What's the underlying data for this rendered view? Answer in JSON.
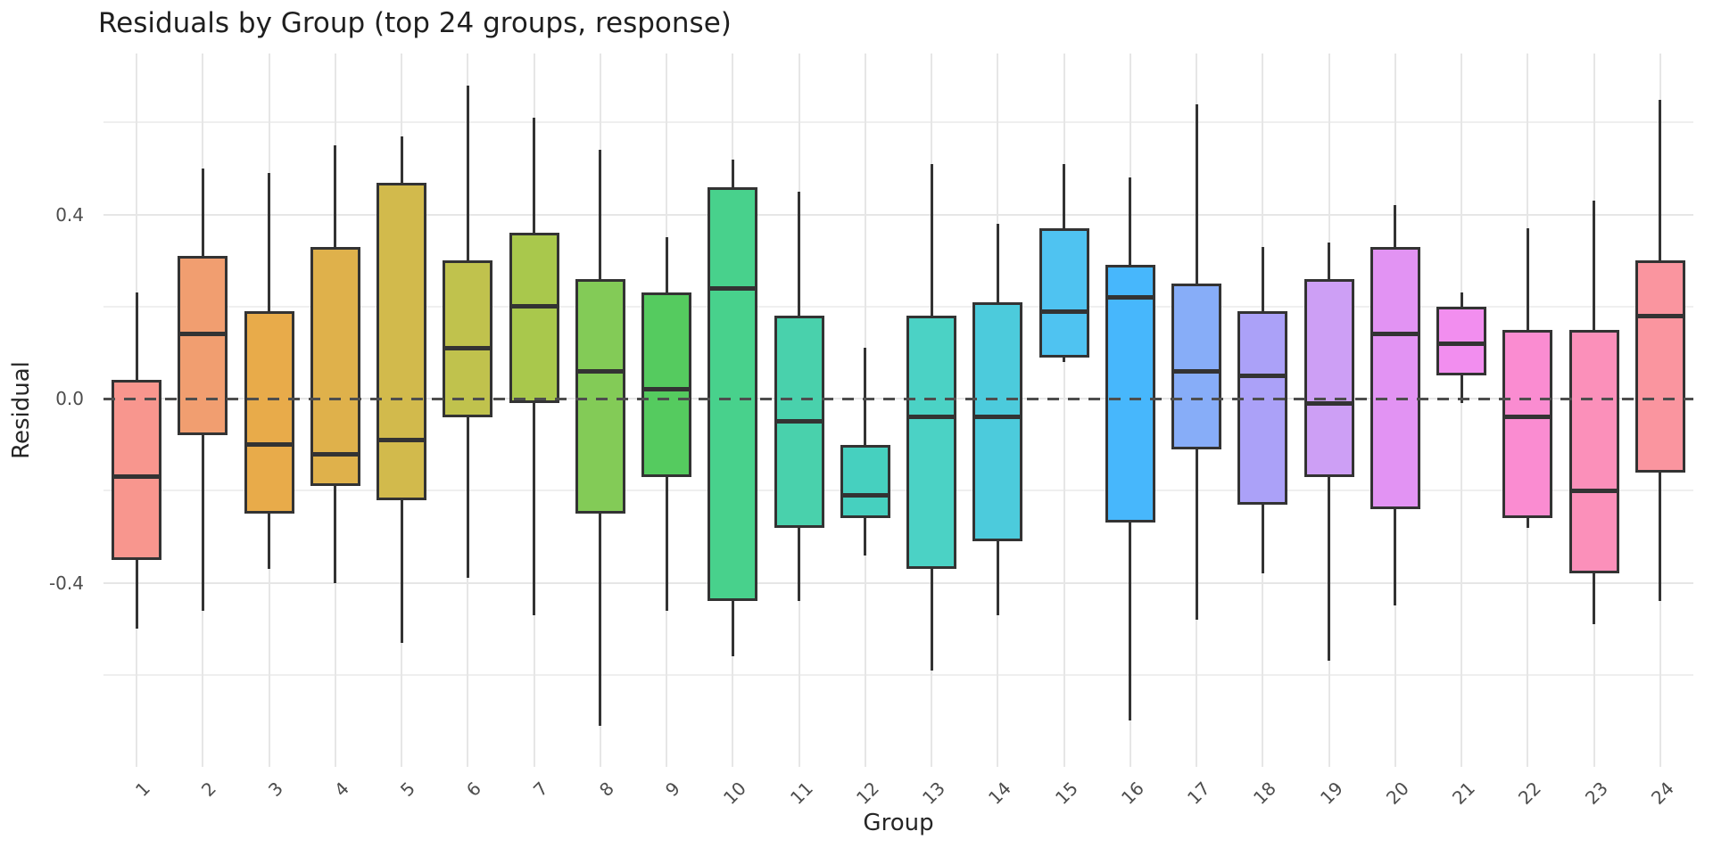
{
  "chart": {
    "title": "Residuals by Group (top 24 groups, response)",
    "xlabel": "Group",
    "ylabel": "Residual"
  },
  "chart_data": {
    "type": "boxplot",
    "title": "Residuals by Group (top 24 groups, response)",
    "xlabel": "Group",
    "ylabel": "Residual",
    "ylim": [
      -0.8,
      0.75
    ],
    "grid": true,
    "legend": "none",
    "y_major_ticks": {
      "values": [
        0.4,
        0.0,
        -0.4
      ],
      "labels": [
        "0.4",
        "0.0",
        "-0.4"
      ]
    },
    "y_minor_ticks": [
      0.6,
      0.2,
      -0.2,
      -0.6
    ],
    "zero_reference_line": 0.0,
    "categories": [
      "1",
      "2",
      "3",
      "4",
      "5",
      "6",
      "7",
      "8",
      "9",
      "10",
      "11",
      "12",
      "13",
      "14",
      "15",
      "16",
      "17",
      "18",
      "19",
      "20",
      "21",
      "22",
      "23",
      "24"
    ],
    "series": [
      {
        "group": "1",
        "fill": "#F8968E",
        "whisker_low": -0.5,
        "q1": -0.35,
        "median": -0.17,
        "q3": 0.04,
        "whisker_high": 0.23
      },
      {
        "group": "2",
        "fill": "#F19E70",
        "whisker_low": -0.46,
        "q1": -0.08,
        "median": 0.14,
        "q3": 0.31,
        "whisker_high": 0.5
      },
      {
        "group": "3",
        "fill": "#E8AB4A",
        "whisker_low": -0.37,
        "q1": -0.25,
        "median": -0.1,
        "q3": 0.19,
        "whisker_high": 0.49
      },
      {
        "group": "4",
        "fill": "#DFB14B",
        "whisker_low": -0.4,
        "q1": -0.19,
        "median": -0.12,
        "q3": 0.33,
        "whisker_high": 0.55
      },
      {
        "group": "5",
        "fill": "#D2BA4C",
        "whisker_low": -0.53,
        "q1": -0.22,
        "median": -0.09,
        "q3": 0.47,
        "whisker_high": 0.57
      },
      {
        "group": "6",
        "fill": "#C0C24D",
        "whisker_low": -0.39,
        "q1": -0.04,
        "median": 0.11,
        "q3": 0.3,
        "whisker_high": 0.68
      },
      {
        "group": "7",
        "fill": "#A9C84C",
        "whisker_low": -0.47,
        "q1": -0.01,
        "median": 0.2,
        "q3": 0.36,
        "whisker_high": 0.61
      },
      {
        "group": "8",
        "fill": "#83CB57",
        "whisker_low": -0.71,
        "q1": -0.25,
        "median": 0.06,
        "q3": 0.26,
        "whisker_high": 0.54
      },
      {
        "group": "9",
        "fill": "#55CB5F",
        "whisker_low": -0.46,
        "q1": -0.17,
        "median": 0.02,
        "q3": 0.23,
        "whisker_high": 0.35
      },
      {
        "group": "10",
        "fill": "#48D18C",
        "whisker_low": -0.56,
        "q1": -0.44,
        "median": 0.24,
        "q3": 0.46,
        "whisker_high": 0.52
      },
      {
        "group": "11",
        "fill": "#49D1AC",
        "whisker_low": -0.44,
        "q1": -0.28,
        "median": -0.05,
        "q3": 0.18,
        "whisker_high": 0.45
      },
      {
        "group": "12",
        "fill": "#46D0BF",
        "whisker_low": -0.34,
        "q1": -0.26,
        "median": -0.21,
        "q3": -0.1,
        "whisker_high": 0.11
      },
      {
        "group": "13",
        "fill": "#4BD2C5",
        "whisker_low": -0.59,
        "q1": -0.37,
        "median": -0.04,
        "q3": 0.18,
        "whisker_high": 0.51
      },
      {
        "group": "14",
        "fill": "#4CCBDC",
        "whisker_low": -0.47,
        "q1": -0.31,
        "median": -0.04,
        "q3": 0.21,
        "whisker_high": 0.38
      },
      {
        "group": "15",
        "fill": "#4FC3F1",
        "whisker_low": 0.08,
        "q1": 0.09,
        "median": 0.19,
        "q3": 0.37,
        "whisker_high": 0.51
      },
      {
        "group": "16",
        "fill": "#47B7FC",
        "whisker_low": -0.7,
        "q1": -0.27,
        "median": 0.22,
        "q3": 0.29,
        "whisker_high": 0.48
      },
      {
        "group": "17",
        "fill": "#87ADF8",
        "whisker_low": -0.48,
        "q1": -0.11,
        "median": 0.06,
        "q3": 0.25,
        "whisker_high": 0.64
      },
      {
        "group": "18",
        "fill": "#ABA1F8",
        "whisker_low": -0.38,
        "q1": -0.23,
        "median": 0.05,
        "q3": 0.19,
        "whisker_high": 0.33
      },
      {
        "group": "19",
        "fill": "#CD9FF5",
        "whisker_low": -0.57,
        "q1": -0.17,
        "median": -0.01,
        "q3": 0.26,
        "whisker_high": 0.34
      },
      {
        "group": "20",
        "fill": "#E293F3",
        "whisker_low": -0.45,
        "q1": -0.24,
        "median": 0.14,
        "q3": 0.33,
        "whisker_high": 0.42
      },
      {
        "group": "21",
        "fill": "#F28EEF",
        "whisker_low": -0.01,
        "q1": 0.05,
        "median": 0.12,
        "q3": 0.2,
        "whisker_high": 0.23
      },
      {
        "group": "22",
        "fill": "#FA8CD1",
        "whisker_low": -0.28,
        "q1": -0.26,
        "median": -0.04,
        "q3": 0.15,
        "whisker_high": 0.37
      },
      {
        "group": "23",
        "fill": "#FB90BA",
        "whisker_low": -0.49,
        "q1": -0.38,
        "median": -0.2,
        "q3": 0.15,
        "whisker_high": 0.43
      },
      {
        "group": "24",
        "fill": "#FA959F",
        "whisker_low": -0.44,
        "q1": -0.16,
        "median": 0.18,
        "q3": 0.3,
        "whisker_high": 0.65
      }
    ],
    "colors": {
      "box_border": "#333333",
      "median_line": "#333333",
      "zero_line": "#4d4d4d",
      "grid_major": "#e6e6e6",
      "grid_minor": "#efefef",
      "tick_text": "#4d4d4d",
      "axis_title_text": "#262626",
      "title_text": "#1f1f1f",
      "background": "#ffffff"
    }
  }
}
